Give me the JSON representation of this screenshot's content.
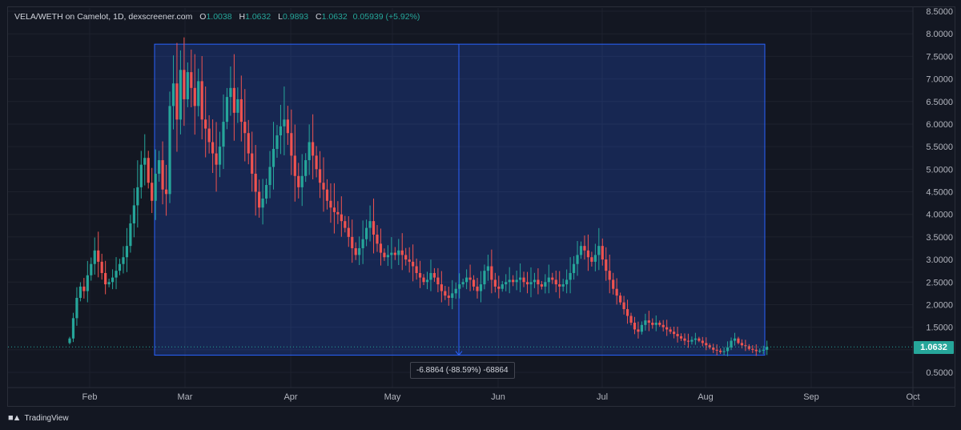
{
  "legend": {
    "symbol": "VELA/WETH on Camelot, 1D, dexscreener.com",
    "o_label": "O",
    "o_value": "1.0038",
    "h_label": "H",
    "h_value": "1.0632",
    "l_label": "L",
    "l_value": "0.9893",
    "c_label": "C",
    "c_value": "1.0632",
    "change": "0.05939 (+5.92%)"
  },
  "measure_label": "-6.8864 (-88.59%) -68864",
  "last_price_label": "1.0632",
  "footer_brand": "TradingView",
  "colors": {
    "up": "#26a69a",
    "down": "#ef5350",
    "measure": "#2962ff",
    "background": "#131722"
  },
  "chart_data": {
    "type": "candlestick",
    "series_name": "VELA/WETH",
    "interval": "1D",
    "ylim": [
      0.3,
      8.5
    ],
    "y_ticks": [
      "8.5000",
      "8.0000",
      "7.5000",
      "7.0000",
      "6.5000",
      "6.0000",
      "5.5000",
      "5.0000",
      "4.5000",
      "4.0000",
      "3.5000",
      "3.0000",
      "2.5000",
      "2.0000",
      "1.5000",
      "1.0000",
      "0.5000"
    ],
    "x_tick_labels": [
      "Feb",
      "Mar",
      "Apr",
      "May",
      "Jun",
      "Jul",
      "Aug",
      "Sep",
      "Oct"
    ],
    "last_price": 1.0632,
    "measure_box": {
      "start_price": 7.77,
      "end_price": 0.88,
      "change": -6.8864,
      "change_pct": -88.59
    },
    "close_series": [
      1.25,
      1.7,
      2.15,
      2.4,
      2.3,
      2.65,
      2.9,
      3.2,
      2.95,
      2.7,
      2.45,
      2.5,
      2.6,
      2.75,
      2.9,
      3.05,
      3.3,
      3.8,
      4.2,
      4.6,
      5.1,
      5.25,
      4.7,
      4.3,
      4.9,
      5.2,
      4.55,
      4.45,
      6.4,
      6.9,
      6.1,
      7.2,
      6.55,
      7.15,
      6.8,
      6.4,
      6.95,
      6.1,
      5.9,
      5.6,
      5.35,
      5.1,
      5.5,
      6.05,
      6.6,
      6.8,
      6.25,
      6.55,
      6.05,
      5.8,
      5.35,
      4.9,
      4.5,
      4.15,
      4.35,
      4.65,
      5.05,
      5.45,
      5.75,
      5.95,
      6.1,
      5.8,
      5.3,
      4.85,
      4.6,
      4.85,
      5.2,
      5.6,
      5.3,
      5.0,
      4.7,
      4.55,
      4.3,
      4.15,
      4.05,
      4.0,
      3.85,
      3.7,
      3.5,
      3.25,
      3.1,
      3.25,
      3.45,
      3.7,
      3.85,
      3.55,
      3.35,
      3.15,
      3.05,
      3.1,
      3.15,
      3.1,
      3.2,
      3.1,
      3.0,
      2.95,
      2.85,
      2.7,
      2.6,
      2.5,
      2.55,
      2.7,
      2.6,
      2.45,
      2.3,
      2.2,
      2.15,
      2.25,
      2.35,
      2.45,
      2.5,
      2.6,
      2.55,
      2.4,
      2.3,
      2.45,
      2.75,
      2.85,
      2.55,
      2.4,
      2.35,
      2.45,
      2.5,
      2.55,
      2.5,
      2.55,
      2.6,
      2.5,
      2.45,
      2.5,
      2.55,
      2.45,
      2.4,
      2.5,
      2.6,
      2.55,
      2.45,
      2.4,
      2.45,
      2.55,
      2.7,
      2.9,
      3.1,
      3.3,
      3.2,
      3.05,
      2.95,
      3.1,
      3.3,
      3.0,
      2.75,
      2.55,
      2.35,
      2.2,
      2.05,
      1.9,
      1.75,
      1.6,
      1.45,
      1.4,
      1.55,
      1.65,
      1.6,
      1.55,
      1.6,
      1.55,
      1.5,
      1.45,
      1.4,
      1.35,
      1.3,
      1.25,
      1.2,
      1.18,
      1.22,
      1.25,
      1.2,
      1.15,
      1.1,
      1.05,
      1.0,
      0.98,
      0.95,
      0.97,
      1.05,
      1.2,
      1.25,
      1.15,
      1.1,
      1.08,
      1.02,
      1.0,
      0.97,
      0.98,
      1.0,
      1.0632
    ]
  }
}
